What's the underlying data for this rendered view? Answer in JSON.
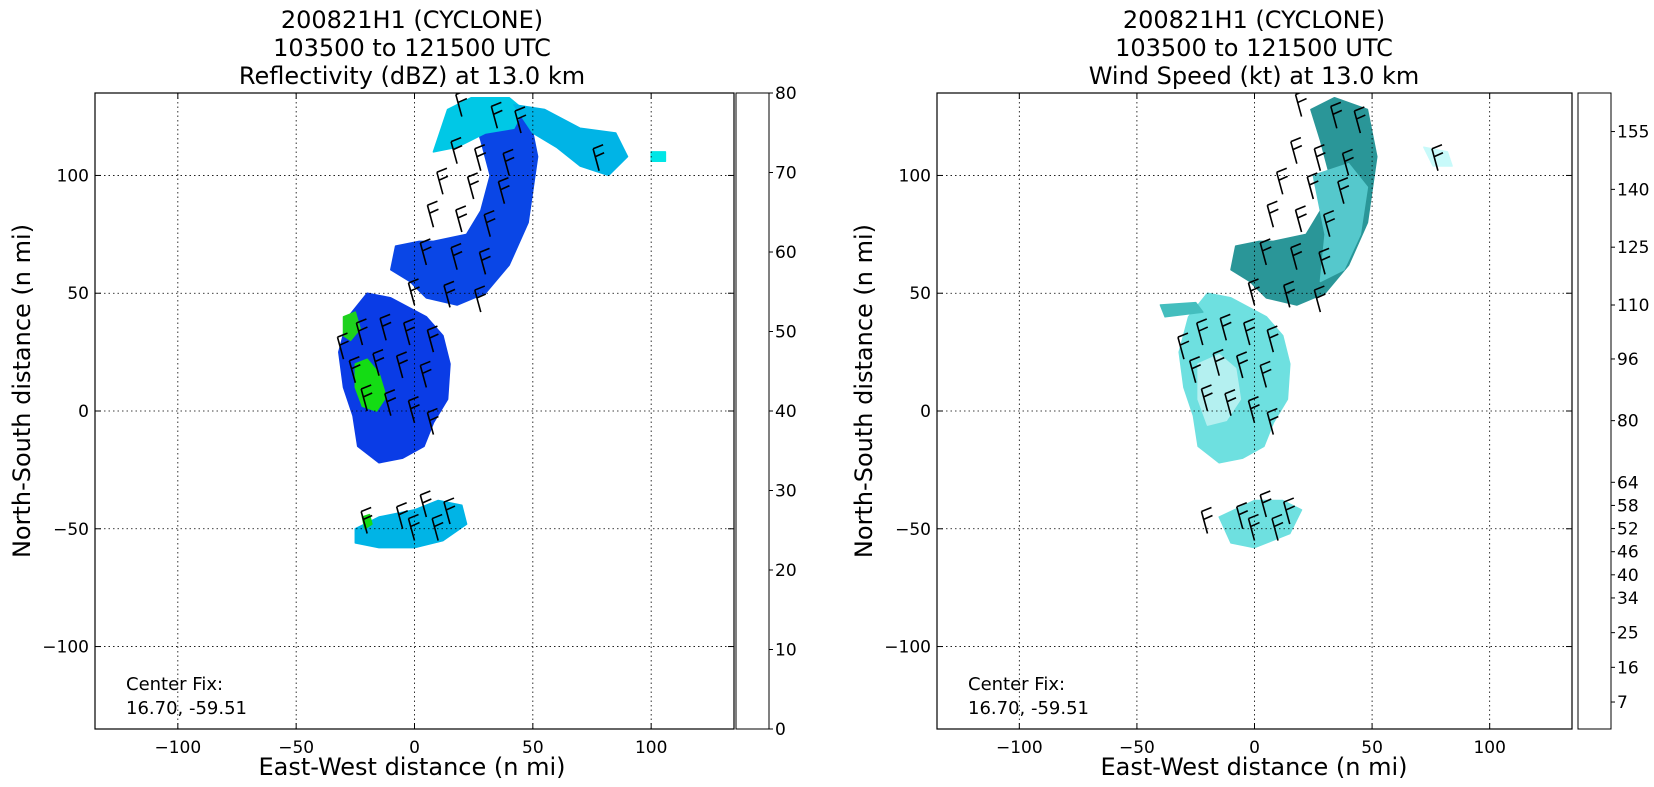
{
  "chart_data": [
    {
      "type": "heatmap",
      "title_lines": [
        "200821H1 (CYCLONE)",
        "103500 to 121500 UTC",
        "Reflectivity (dBZ) at 13.0 km"
      ],
      "xlabel": "East-West distance (n mi)",
      "ylabel": "North-South distance (n mi)",
      "xlim": [
        -135,
        135
      ],
      "ylim": [
        -135,
        135
      ],
      "xticks": [
        -100,
        -50,
        0,
        50,
        100
      ],
      "yticks": [
        -100,
        -50,
        0,
        50,
        100
      ],
      "grid": true,
      "annotation_lines": [
        "Center Fix:",
        "16.70, -59.51"
      ],
      "colorbar": {
        "min": 0,
        "max": 80,
        "tick_values": [
          0,
          10,
          20,
          30,
          40,
          50,
          60,
          70,
          80
        ],
        "colors": [
          "#00e6e6",
          "#00ccdd",
          "#00b4e6",
          "#0096f0",
          "#0078f0",
          "#005af0",
          "#0040e6",
          "#0028d2",
          "#006a7a",
          "#00c800",
          "#00dc14",
          "#00d200",
          "#00b400",
          "#009600",
          "#008200",
          "#6fb400",
          "#b4d200",
          "#ffff00",
          "#f0e100",
          "#e6c800",
          "#e6b400",
          "#f09600",
          "#f07800",
          "#ff6400",
          "#ff3c00",
          "#ff1400",
          "#f00000",
          "#dc0000",
          "#cc0000",
          "#c80014",
          "#e60078",
          "#f000dc",
          "#dc28dc",
          "#c846dc",
          "#a050c8",
          "#7a3c96",
          "#3c283c",
          "#000000"
        ]
      },
      "fields": [
        {
          "name": "north-band",
          "color": "#0a46e6",
          "poly": [
            [
              8,
              72
            ],
            [
              22,
              75
            ],
            [
              28,
              85
            ],
            [
              32,
              100
            ],
            [
              28,
              115
            ],
            [
              24,
              128
            ],
            [
              34,
              133
            ],
            [
              48,
              128
            ],
            [
              52,
              108
            ],
            [
              48,
              80
            ],
            [
              40,
              62
            ],
            [
              30,
              50
            ],
            [
              18,
              45
            ],
            [
              5,
              48
            ],
            [
              -2,
              55
            ],
            [
              -10,
              60
            ],
            [
              -8,
              70
            ],
            [
              2,
              72
            ]
          ]
        },
        {
          "name": "north-band-top",
          "color": "#00c8e6",
          "poly": [
            [
              8,
              110
            ],
            [
              14,
              128
            ],
            [
              24,
              133
            ],
            [
              40,
              133
            ],
            [
              46,
              128
            ],
            [
              42,
              120
            ],
            [
              30,
              118
            ],
            [
              18,
              112
            ]
          ]
        },
        {
          "name": "north-arm",
          "color": "#00b4e6",
          "poly": [
            [
              42,
              130
            ],
            [
              55,
              128
            ],
            [
              70,
              120
            ],
            [
              85,
              118
            ],
            [
              90,
              108
            ],
            [
              82,
              100
            ],
            [
              70,
              104
            ],
            [
              60,
              112
            ],
            [
              50,
              118
            ]
          ]
        },
        {
          "name": "core",
          "color": "#0a3ce6",
          "poly": [
            [
              -28,
              40
            ],
            [
              -20,
              50
            ],
            [
              -10,
              48
            ],
            [
              5,
              40
            ],
            [
              12,
              32
            ],
            [
              15,
              20
            ],
            [
              14,
              5
            ],
            [
              8,
              -5
            ],
            [
              4,
              -15
            ],
            [
              -5,
              -20
            ],
            [
              -15,
              -22
            ],
            [
              -24,
              -15
            ],
            [
              -26,
              -2
            ],
            [
              -30,
              10
            ],
            [
              -32,
              25
            ]
          ]
        },
        {
          "name": "core-green-west",
          "color": "#1ed21e",
          "poly": [
            [
              -30,
              40
            ],
            [
              -25,
              42
            ],
            [
              -23,
              35
            ],
            [
              -27,
              30
            ],
            [
              -30,
              32
            ]
          ]
        },
        {
          "name": "core-green-south",
          "color": "#14dc14",
          "poly": [
            [
              -25,
              20
            ],
            [
              -20,
              22
            ],
            [
              -15,
              16
            ],
            [
              -12,
              6
            ],
            [
              -16,
              0
            ],
            [
              -22,
              2
            ],
            [
              -25,
              10
            ]
          ]
        },
        {
          "name": "south-cell",
          "color": "#00b4e6",
          "poly": [
            [
              -25,
              -50
            ],
            [
              -15,
              -45
            ],
            [
              0,
              -42
            ],
            [
              10,
              -38
            ],
            [
              20,
              -40
            ],
            [
              22,
              -48
            ],
            [
              12,
              -55
            ],
            [
              0,
              -58
            ],
            [
              -15,
              -58
            ],
            [
              -25,
              -56
            ]
          ]
        },
        {
          "name": "south-cell-green",
          "color": "#14dc14",
          "poly": [
            [
              -22,
              -45
            ],
            [
              -19,
              -44
            ],
            [
              -18,
              -48
            ],
            [
              -21,
              -50
            ]
          ]
        },
        {
          "name": "north-east-specks",
          "color": "#00e6e6",
          "poly": [
            [
              100,
              110
            ],
            [
              106,
              110
            ],
            [
              106,
              106
            ],
            [
              100,
              106
            ]
          ]
        }
      ],
      "barbs": [
        [
          20,
          125
        ],
        [
          35,
          120
        ],
        [
          45,
          118
        ],
        [
          18,
          105
        ],
        [
          28,
          102
        ],
        [
          40,
          100
        ],
        [
          12,
          92
        ],
        [
          25,
          90
        ],
        [
          38,
          88
        ],
        [
          8,
          78
        ],
        [
          20,
          76
        ],
        [
          32,
          74
        ],
        [
          5,
          62
        ],
        [
          18,
          60
        ],
        [
          30,
          58
        ],
        [
          0,
          45
        ],
        [
          15,
          44
        ],
        [
          28,
          42
        ],
        [
          78,
          102
        ],
        [
          -30,
          22
        ],
        [
          -22,
          28
        ],
        [
          -12,
          30
        ],
        [
          -2,
          28
        ],
        [
          8,
          25
        ],
        [
          -25,
          12
        ],
        [
          -15,
          15
        ],
        [
          -5,
          14
        ],
        [
          5,
          10
        ],
        [
          -20,
          0
        ],
        [
          -10,
          -2
        ],
        [
          0,
          -5
        ],
        [
          8,
          -10
        ],
        [
          -20,
          -52
        ],
        [
          -5,
          -50
        ],
        [
          5,
          -45
        ],
        [
          15,
          -48
        ],
        [
          0,
          -55
        ],
        [
          10,
          -55
        ]
      ]
    },
    {
      "type": "heatmap",
      "title_lines": [
        "200821H1 (CYCLONE)",
        "103500 to 121500 UTC",
        "Wind Speed (kt) at 13.0 km"
      ],
      "xlabel": "East-West distance (n mi)",
      "ylabel": "North-South distance (n mi)",
      "xlim": [
        -135,
        135
      ],
      "ylim": [
        -135,
        135
      ],
      "xticks": [
        -100,
        -50,
        0,
        50,
        100
      ],
      "yticks": [
        -100,
        -50,
        0,
        50,
        100
      ],
      "grid": true,
      "annotation_lines": [
        "Center Fix:",
        "16.70, -59.51"
      ],
      "colorbar": {
        "min": 0,
        "max": 165,
        "tick_values": [
          7,
          16,
          25,
          34,
          40,
          46,
          52,
          58,
          64,
          80,
          96,
          110,
          125,
          140,
          155
        ],
        "tick_labels": [
          "7",
          "16",
          "25",
          "34",
          "40",
          "46",
          "52",
          "58",
          "64",
          "80",
          "96",
          "110",
          "125",
          "140",
          "155"
        ],
        "colors": [
          "#ffffff",
          "#c8fafa",
          "#96f0f0",
          "#6ee6e6",
          "#55d2d2",
          "#44bebe",
          "#3aa8aa",
          "#2e9296",
          "#1e8082",
          "#00a050",
          "#28b43c",
          "#78d250",
          "#aadc5a",
          "#e6e664",
          "#f0c850",
          "#f09632",
          "#ff5028",
          "#ff2814",
          "#dc0a0a",
          "#b40000",
          "#820000",
          "#7a1446",
          "#a01ea0",
          "#c83cdc",
          "#dc64f0",
          "#e696f0",
          "#f0bef0",
          "#f5b4dc",
          "#fab4c8",
          "#fa96a0",
          "#fa7882",
          "#f0505a",
          "#e63c46",
          "#c82846",
          "#a01e46"
        ]
      },
      "fields": [
        {
          "name": "north-band",
          "color": "#2a9698",
          "poly": [
            [
              8,
              72
            ],
            [
              22,
              75
            ],
            [
              28,
              85
            ],
            [
              32,
              100
            ],
            [
              28,
              115
            ],
            [
              24,
              128
            ],
            [
              34,
              133
            ],
            [
              48,
              128
            ],
            [
              52,
              108
            ],
            [
              48,
              80
            ],
            [
              40,
              62
            ],
            [
              30,
              50
            ],
            [
              18,
              45
            ],
            [
              5,
              48
            ],
            [
              -2,
              55
            ],
            [
              -10,
              60
            ],
            [
              -8,
              70
            ],
            [
              2,
              72
            ]
          ]
        },
        {
          "name": "north-band-light",
          "color": "#55c8cc",
          "poly": [
            [
              25,
              100
            ],
            [
              40,
              105
            ],
            [
              48,
              95
            ],
            [
              45,
              75
            ],
            [
              38,
              60
            ],
            [
              28,
              55
            ],
            [
              30,
              75
            ]
          ]
        },
        {
          "name": "core",
          "color": "#6ee0e0",
          "poly": [
            [
              -28,
              40
            ],
            [
              -20,
              50
            ],
            [
              -10,
              48
            ],
            [
              5,
              40
            ],
            [
              12,
              32
            ],
            [
              15,
              20
            ],
            [
              14,
              5
            ],
            [
              8,
              -5
            ],
            [
              4,
              -15
            ],
            [
              -5,
              -20
            ],
            [
              -15,
              -22
            ],
            [
              -24,
              -15
            ],
            [
              -26,
              -2
            ],
            [
              -30,
              10
            ],
            [
              -32,
              25
            ]
          ]
        },
        {
          "name": "core-pale",
          "color": "#b4f0f0",
          "poly": [
            [
              -24,
              20
            ],
            [
              -15,
              24
            ],
            [
              -8,
              18
            ],
            [
              -6,
              5
            ],
            [
              -12,
              -4
            ],
            [
              -20,
              -6
            ],
            [
              -24,
              5
            ]
          ]
        },
        {
          "name": "core-teal",
          "color": "#44bebe",
          "poly": [
            [
              -40,
              45
            ],
            [
              -25,
              46
            ],
            [
              -22,
              42
            ],
            [
              -38,
              40
            ]
          ]
        },
        {
          "name": "south-cell",
          "color": "#6ee0e0",
          "poly": [
            [
              -15,
              -45
            ],
            [
              0,
              -38
            ],
            [
              12,
              -38
            ],
            [
              20,
              -42
            ],
            [
              15,
              -52
            ],
            [
              0,
              -58
            ],
            [
              -10,
              -56
            ]
          ]
        },
        {
          "name": "north-east-specks",
          "color": "#c8fafa",
          "poly": [
            [
              72,
              112
            ],
            [
              82,
              110
            ],
            [
              84,
              104
            ],
            [
              76,
              104
            ]
          ]
        }
      ],
      "barbs": [
        [
          20,
          125
        ],
        [
          35,
          120
        ],
        [
          45,
          118
        ],
        [
          18,
          105
        ],
        [
          28,
          102
        ],
        [
          40,
          100
        ],
        [
          12,
          92
        ],
        [
          25,
          90
        ],
        [
          38,
          88
        ],
        [
          8,
          78
        ],
        [
          20,
          76
        ],
        [
          32,
          74
        ],
        [
          5,
          62
        ],
        [
          18,
          60
        ],
        [
          30,
          58
        ],
        [
          0,
          45
        ],
        [
          15,
          44
        ],
        [
          28,
          42
        ],
        [
          78,
          102
        ],
        [
          -30,
          22
        ],
        [
          -22,
          28
        ],
        [
          -12,
          30
        ],
        [
          -2,
          28
        ],
        [
          8,
          25
        ],
        [
          -25,
          12
        ],
        [
          -15,
          15
        ],
        [
          -5,
          14
        ],
        [
          5,
          10
        ],
        [
          -20,
          0
        ],
        [
          -10,
          -2
        ],
        [
          0,
          -5
        ],
        [
          8,
          -10
        ],
        [
          -20,
          -52
        ],
        [
          -5,
          -50
        ],
        [
          5,
          -45
        ],
        [
          15,
          -48
        ],
        [
          0,
          -55
        ],
        [
          10,
          -55
        ]
      ]
    }
  ]
}
